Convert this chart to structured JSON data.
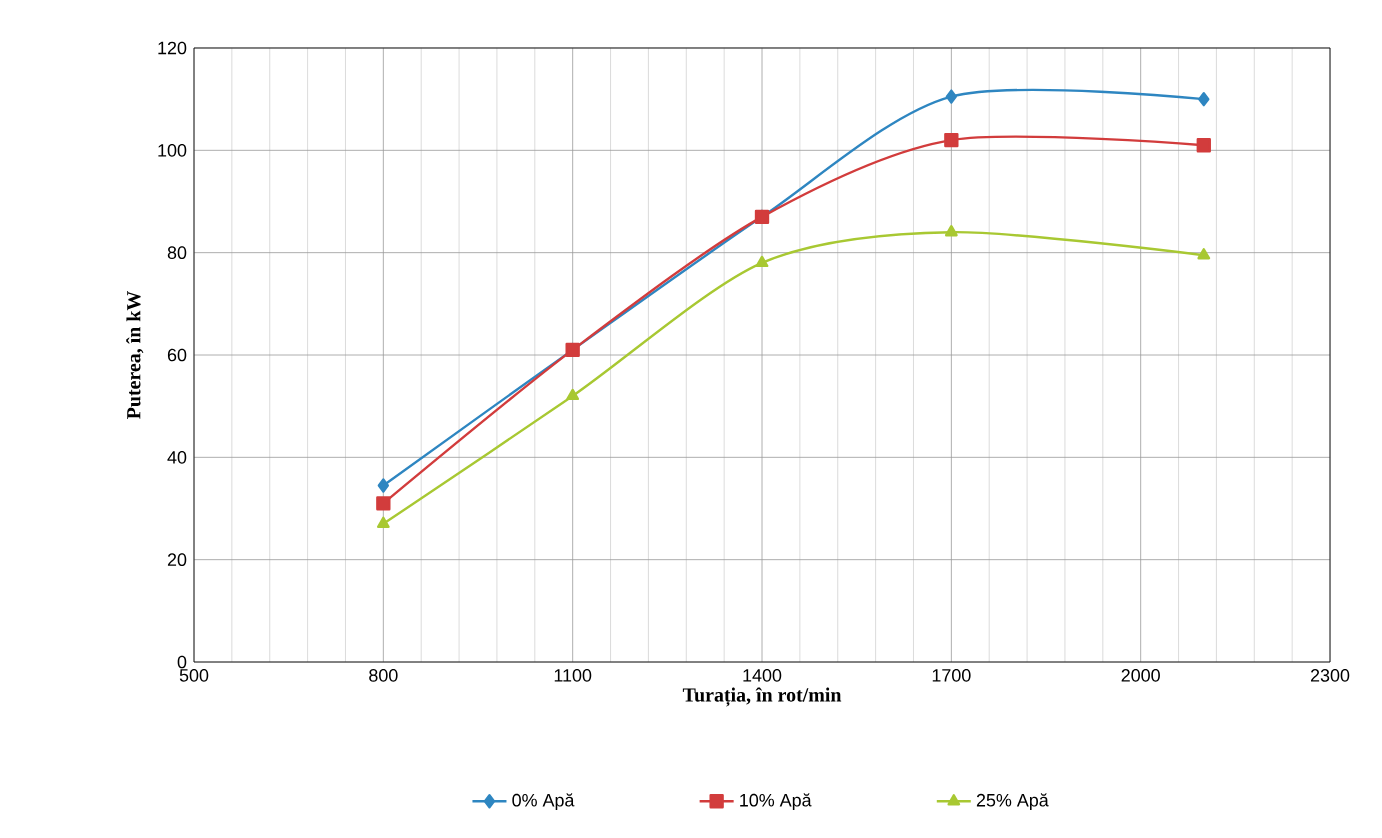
{
  "chart_data": {
    "type": "line",
    "xlabel": "Turația, în rot/min",
    "ylabel": "Puterea, în kW",
    "x": [
      800,
      1100,
      1400,
      1700,
      2100
    ],
    "series": [
      {
        "name": "0% Apă",
        "color": "#2e86c1",
        "marker": "diamond",
        "values": [
          34.5,
          61,
          87,
          110.5,
          110
        ]
      },
      {
        "name": "10% Apă",
        "color": "#d23c3c",
        "marker": "square",
        "values": [
          31,
          61,
          87,
          102,
          101
        ]
      },
      {
        "name": "25% Apă",
        "color": "#a8c832",
        "marker": "triangle",
        "values": [
          27,
          52,
          78,
          84,
          79.5
        ]
      }
    ],
    "xlim": [
      500,
      2300
    ],
    "xticks": [
      500,
      800,
      1100,
      1400,
      1700,
      2000,
      2300
    ],
    "ylim": [
      0,
      120
    ],
    "yticks": [
      0,
      20,
      40,
      60,
      80,
      100,
      120
    ],
    "grid": true,
    "legend": "bottom",
    "line_style": "solid"
  }
}
